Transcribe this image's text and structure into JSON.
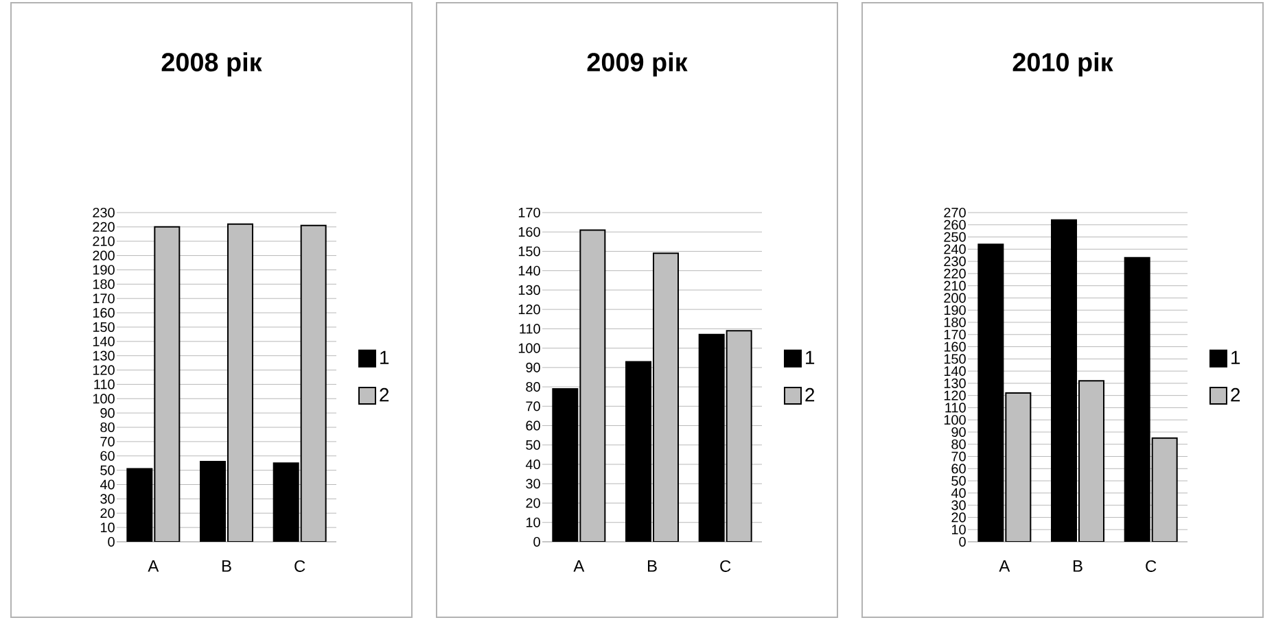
{
  "chart_data": [
    {
      "type": "bar",
      "title": "2008 рік",
      "categories": [
        "A",
        "B",
        "C"
      ],
      "series": [
        {
          "name": "1",
          "color": "#000000",
          "values": [
            51,
            56,
            55
          ]
        },
        {
          "name": "2",
          "color": "#bfbfbf",
          "values": [
            220,
            222,
            221
          ]
        }
      ],
      "ylim": [
        0,
        230
      ],
      "yticks": [
        0,
        10,
        20,
        30,
        40,
        50,
        60,
        70,
        80,
        90,
        100,
        110,
        120,
        130,
        140,
        150,
        160,
        170,
        180,
        190,
        200,
        210,
        220,
        230
      ],
      "grid": "y",
      "legend": "right"
    },
    {
      "type": "bar",
      "title": "2009 рік",
      "categories": [
        "A",
        "B",
        "C"
      ],
      "series": [
        {
          "name": "1",
          "color": "#000000",
          "values": [
            79,
            93,
            107
          ]
        },
        {
          "name": "2",
          "color": "#bfbfbf",
          "values": [
            161,
            149,
            109
          ]
        }
      ],
      "ylim": [
        0,
        170
      ],
      "yticks": [
        0,
        10,
        20,
        30,
        40,
        50,
        60,
        70,
        80,
        90,
        100,
        110,
        120,
        130,
        140,
        150,
        160,
        170
      ],
      "grid": "y",
      "legend": "right"
    },
    {
      "type": "bar",
      "title": "2010 рік",
      "categories": [
        "A",
        "B",
        "C"
      ],
      "series": [
        {
          "name": "1",
          "color": "#000000",
          "values": [
            244,
            264,
            233
          ]
        },
        {
          "name": "2",
          "color": "#bfbfbf",
          "values": [
            122,
            132,
            85
          ]
        }
      ],
      "ylim": [
        0,
        270
      ],
      "yticks": [
        0,
        10,
        20,
        30,
        40,
        50,
        60,
        70,
        80,
        90,
        100,
        110,
        120,
        130,
        140,
        150,
        160,
        170,
        180,
        190,
        200,
        210,
        220,
        230,
        240,
        250,
        260,
        270
      ],
      "grid": "y",
      "legend": "right"
    }
  ]
}
